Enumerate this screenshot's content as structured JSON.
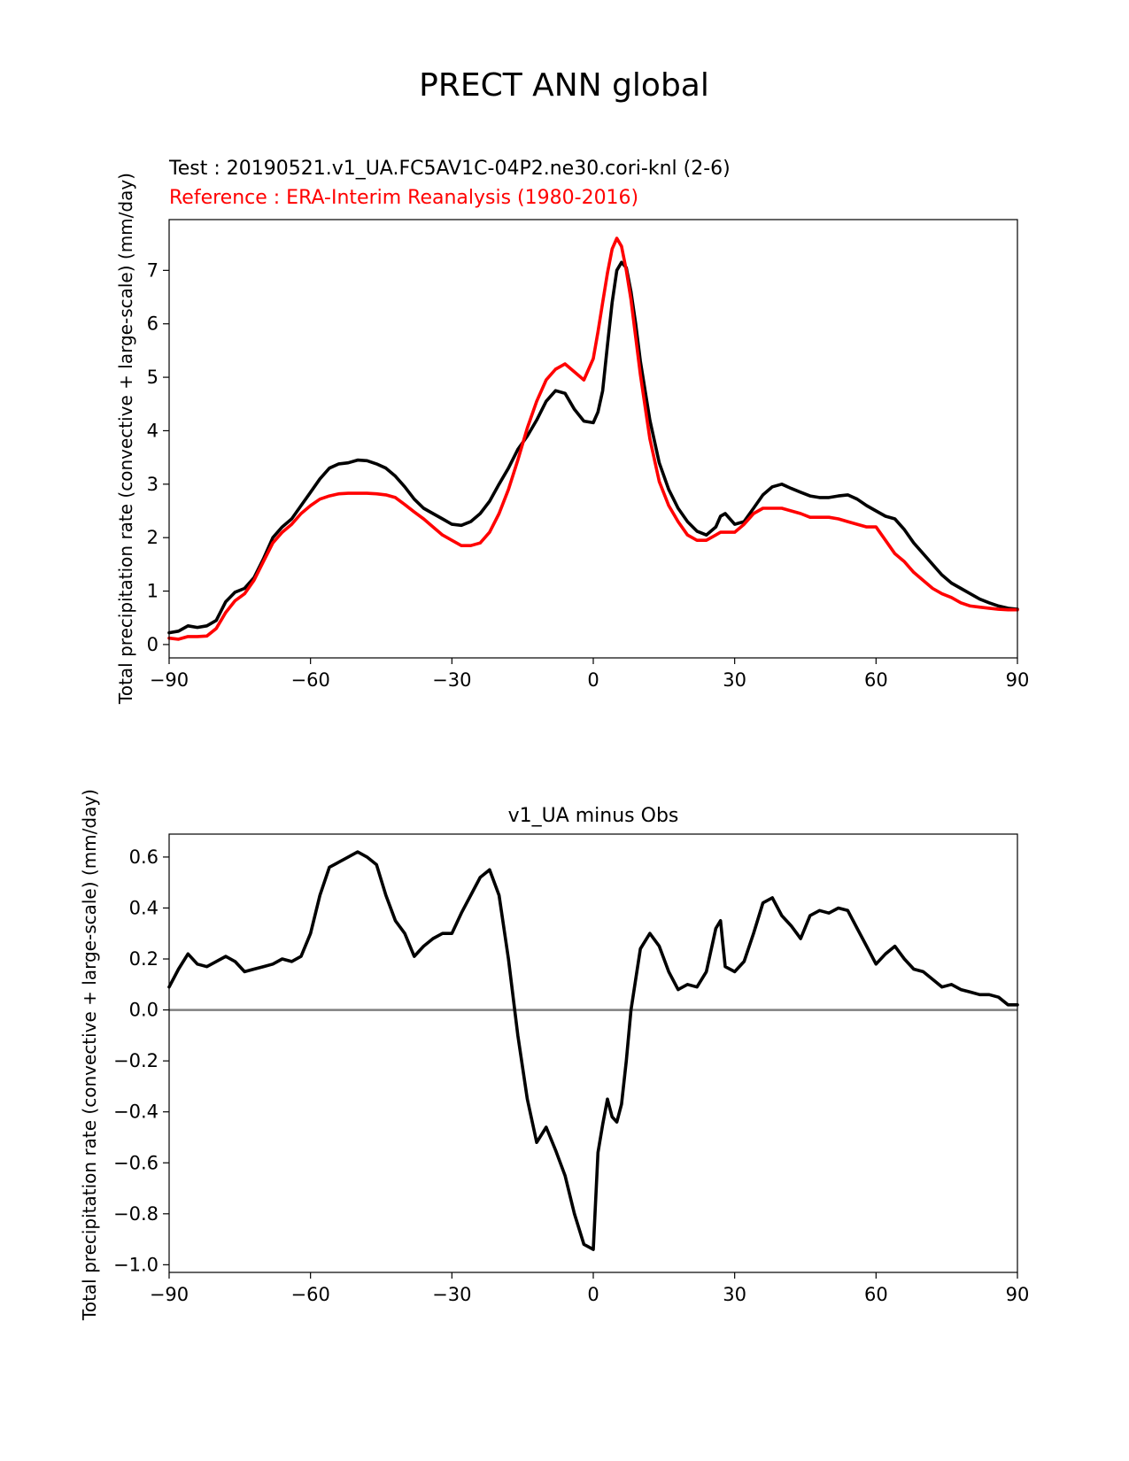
{
  "figure_title": "PRECT ANN global",
  "colors": {
    "test": "#000000",
    "reference": "#ff0000",
    "zero_line": "#808080"
  },
  "chart_data": [
    {
      "type": "line",
      "test_label": "Test : 20190521.v1_UA.FC5AV1C-04P2.ne30.cori-knl (2-6)",
      "reference_label": "Reference : ERA-Interim Reanalysis (1980-2016)",
      "ylabel": "Total precipitation rate (convective + large-scale) (mm/day)",
      "xlim": [
        -90,
        90
      ],
      "ylim": [
        -0.25,
        7.95
      ],
      "xticks": [
        -90,
        -60,
        -30,
        0,
        30,
        60,
        90
      ],
      "yticks": [
        0,
        1,
        2,
        3,
        4,
        5,
        6,
        7
      ],
      "series": [
        {
          "name": "test",
          "color": "#000000",
          "x": [
            -90,
            -88,
            -86,
            -84,
            -82,
            -80,
            -78,
            -76,
            -74,
            -72,
            -70,
            -68,
            -66,
            -64,
            -62,
            -60,
            -58,
            -56,
            -54,
            -52,
            -50,
            -48,
            -46,
            -44,
            -42,
            -40,
            -38,
            -36,
            -34,
            -32,
            -30,
            -28,
            -26,
            -24,
            -22,
            -20,
            -18,
            -16,
            -14,
            -12,
            -10,
            -8,
            -6,
            -4,
            -2,
            0,
            1,
            2,
            3,
            4,
            5,
            6,
            7,
            8,
            9,
            10,
            12,
            14,
            16,
            18,
            20,
            22,
            24,
            26,
            27,
            28,
            30,
            32,
            34,
            36,
            38,
            40,
            42,
            44,
            46,
            48,
            50,
            52,
            54,
            56,
            58,
            60,
            62,
            64,
            66,
            68,
            70,
            72,
            74,
            76,
            78,
            80,
            82,
            84,
            86,
            88,
            90
          ],
          "y": [
            0.22,
            0.25,
            0.35,
            0.32,
            0.35,
            0.45,
            0.8,
            0.98,
            1.05,
            1.25,
            1.6,
            2.0,
            2.2,
            2.35,
            2.6,
            2.85,
            3.1,
            3.3,
            3.38,
            3.4,
            3.45,
            3.44,
            3.38,
            3.3,
            3.15,
            2.95,
            2.72,
            2.55,
            2.45,
            2.35,
            2.25,
            2.23,
            2.3,
            2.45,
            2.68,
            3.0,
            3.3,
            3.65,
            3.9,
            4.2,
            4.55,
            4.75,
            4.7,
            4.4,
            4.18,
            4.15,
            4.35,
            4.75,
            5.6,
            6.4,
            7.0,
            7.15,
            7.05,
            6.6,
            6.0,
            5.3,
            4.2,
            3.4,
            2.9,
            2.55,
            2.3,
            2.12,
            2.05,
            2.2,
            2.4,
            2.45,
            2.25,
            2.3,
            2.55,
            2.8,
            2.95,
            3.0,
            2.92,
            2.85,
            2.78,
            2.75,
            2.75,
            2.78,
            2.8,
            2.72,
            2.6,
            2.5,
            2.4,
            2.35,
            2.15,
            1.9,
            1.7,
            1.5,
            1.3,
            1.15,
            1.05,
            0.95,
            0.85,
            0.78,
            0.72,
            0.68,
            0.66
          ]
        },
        {
          "name": "reference",
          "color": "#ff0000",
          "x": [
            -90,
            -88,
            -86,
            -84,
            -82,
            -80,
            -78,
            -76,
            -74,
            -72,
            -70,
            -68,
            -66,
            -64,
            -62,
            -60,
            -58,
            -56,
            -54,
            -52,
            -50,
            -48,
            -46,
            -44,
            -42,
            -40,
            -38,
            -36,
            -34,
            -32,
            -30,
            -28,
            -26,
            -24,
            -22,
            -20,
            -18,
            -16,
            -14,
            -12,
            -10,
            -8,
            -6,
            -4,
            -2,
            0,
            1,
            2,
            3,
            4,
            5,
            6,
            7,
            8,
            9,
            10,
            12,
            14,
            16,
            18,
            20,
            22,
            24,
            26,
            27,
            28,
            30,
            32,
            34,
            36,
            38,
            40,
            42,
            44,
            46,
            48,
            50,
            52,
            54,
            56,
            58,
            60,
            62,
            64,
            66,
            68,
            70,
            72,
            74,
            76,
            78,
            80,
            82,
            84,
            86,
            88,
            90
          ],
          "y": [
            0.12,
            0.1,
            0.15,
            0.15,
            0.16,
            0.3,
            0.6,
            0.82,
            0.95,
            1.2,
            1.55,
            1.9,
            2.1,
            2.25,
            2.45,
            2.6,
            2.72,
            2.78,
            2.82,
            2.83,
            2.83,
            2.83,
            2.82,
            2.8,
            2.75,
            2.62,
            2.48,
            2.35,
            2.2,
            2.05,
            1.95,
            1.85,
            1.85,
            1.9,
            2.1,
            2.45,
            2.9,
            3.45,
            4.05,
            4.55,
            4.95,
            5.15,
            5.25,
            5.1,
            4.95,
            5.35,
            5.85,
            6.4,
            6.95,
            7.4,
            7.6,
            7.45,
            7.0,
            6.45,
            5.75,
            5.05,
            3.85,
            3.05,
            2.6,
            2.3,
            2.05,
            1.95,
            1.95,
            2.05,
            2.1,
            2.1,
            2.1,
            2.25,
            2.45,
            2.55,
            2.55,
            2.55,
            2.5,
            2.45,
            2.38,
            2.38,
            2.38,
            2.35,
            2.3,
            2.25,
            2.2,
            2.2,
            1.95,
            1.7,
            1.55,
            1.35,
            1.2,
            1.05,
            0.95,
            0.88,
            0.78,
            0.72,
            0.7,
            0.68,
            0.66,
            0.65,
            0.65
          ]
        }
      ]
    },
    {
      "type": "line",
      "title": "v1_UA minus Obs",
      "ylabel": "Total precipitation rate (convective + large-scale) (mm/day)",
      "xlim": [
        -90,
        90
      ],
      "ylim": [
        -1.03,
        0.69
      ],
      "xticks": [
        -90,
        -60,
        -30,
        0,
        30,
        60,
        90
      ],
      "yticks": [
        -1.0,
        -0.8,
        -0.6,
        -0.4,
        -0.2,
        0.0,
        0.2,
        0.4,
        0.6
      ],
      "ytick_labels": [
        "−1.0",
        "−0.8",
        "−0.6",
        "−0.4",
        "−0.2",
        "0.0",
        "0.2",
        "0.4",
        "0.6"
      ],
      "zero_line": 0,
      "series": [
        {
          "name": "difference",
          "color": "#000000",
          "x": [
            -90,
            -88,
            -86,
            -84,
            -82,
            -80,
            -78,
            -76,
            -74,
            -72,
            -70,
            -68,
            -66,
            -64,
            -62,
            -60,
            -58,
            -56,
            -54,
            -52,
            -50,
            -48,
            -46,
            -44,
            -42,
            -40,
            -38,
            -36,
            -34,
            -32,
            -30,
            -28,
            -26,
            -24,
            -22,
            -20,
            -18,
            -16,
            -14,
            -12,
            -10,
            -8,
            -6,
            -4,
            -2,
            0,
            1,
            2,
            3,
            4,
            5,
            6,
            7,
            8,
            9,
            10,
            12,
            14,
            16,
            18,
            20,
            22,
            24,
            26,
            27,
            28,
            30,
            32,
            34,
            36,
            38,
            40,
            42,
            44,
            46,
            48,
            50,
            52,
            54,
            56,
            58,
            60,
            62,
            64,
            66,
            68,
            70,
            72,
            74,
            76,
            78,
            80,
            82,
            84,
            86,
            88,
            90
          ],
          "y": [
            0.09,
            0.16,
            0.22,
            0.18,
            0.17,
            0.19,
            0.21,
            0.19,
            0.15,
            0.16,
            0.17,
            0.18,
            0.2,
            0.19,
            0.21,
            0.3,
            0.45,
            0.56,
            0.58,
            0.6,
            0.62,
            0.6,
            0.57,
            0.45,
            0.35,
            0.3,
            0.21,
            0.25,
            0.28,
            0.3,
            0.3,
            0.38,
            0.45,
            0.52,
            0.55,
            0.45,
            0.2,
            -0.1,
            -0.35,
            -0.52,
            -0.46,
            -0.55,
            -0.65,
            -0.8,
            -0.92,
            -0.94,
            -0.56,
            -0.45,
            -0.35,
            -0.42,
            -0.44,
            -0.37,
            -0.2,
            0.0,
            0.12,
            0.24,
            0.3,
            0.25,
            0.15,
            0.08,
            0.1,
            0.09,
            0.15,
            0.32,
            0.35,
            0.17,
            0.15,
            0.19,
            0.3,
            0.42,
            0.44,
            0.37,
            0.33,
            0.28,
            0.37,
            0.39,
            0.38,
            0.4,
            0.39,
            0.32,
            0.25,
            0.18,
            0.22,
            0.25,
            0.2,
            0.16,
            0.15,
            0.12,
            0.09,
            0.1,
            0.08,
            0.07,
            0.06,
            0.06,
            0.05,
            0.02,
            0.02
          ]
        }
      ]
    }
  ]
}
